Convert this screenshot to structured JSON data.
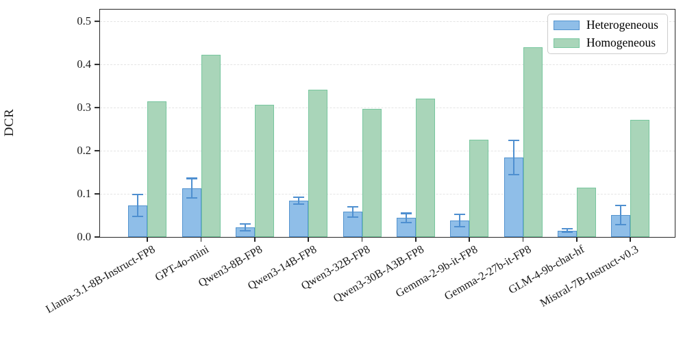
{
  "chart_data": {
    "type": "bar",
    "title": "",
    "xlabel": "",
    "ylabel": "DCR",
    "ylim": [
      0,
      0.527
    ],
    "yticks": [
      "0.0",
      "0.1",
      "0.2",
      "0.3",
      "0.4",
      "0.5"
    ],
    "ytick_values": [
      0.0,
      0.1,
      0.2,
      0.3,
      0.4,
      0.5
    ],
    "grid": "horizontal dashed, on",
    "legend_position": "upper right",
    "categories": [
      "Llama-3.1-8B-Instruct-FP8",
      "GPT-4o-mini",
      "Qwen3-8B-FP8",
      "Qwen3-14B-FP8",
      "Qwen3-32B-FP8",
      "Qwen3-30B-A3B-FP8",
      "Gemma-2-9b-it-FP8",
      "Gemma-2-27b-it-FP8",
      "GLM-4-9b-chat-hf",
      "Mistral-7B-Instruct-v0.3"
    ],
    "series": [
      {
        "name": "Heterogeneous",
        "values": [
          0.073,
          0.113,
          0.022,
          0.084,
          0.058,
          0.044,
          0.038,
          0.184,
          0.015,
          0.051
        ],
        "errors": [
          0.025,
          0.023,
          0.008,
          0.008,
          0.012,
          0.011,
          0.014,
          0.04,
          0.004,
          0.022
        ],
        "fill_color": "#8fbee8",
        "edge_color": "#5292ce",
        "error_color": "#4e8fd0"
      },
      {
        "name": "Homogeneous",
        "values": [
          0.315,
          0.422,
          0.306,
          0.341,
          0.297,
          0.32,
          0.226,
          0.44,
          0.114,
          0.272
        ],
        "errors": null,
        "fill_color": "#a9d5b9",
        "edge_color": "#77c69e"
      }
    ]
  },
  "colors": {
    "axis": "#262626",
    "gridline": "#e4e4e4",
    "legend_border": "#cccccc",
    "background": "#ffffff"
  }
}
